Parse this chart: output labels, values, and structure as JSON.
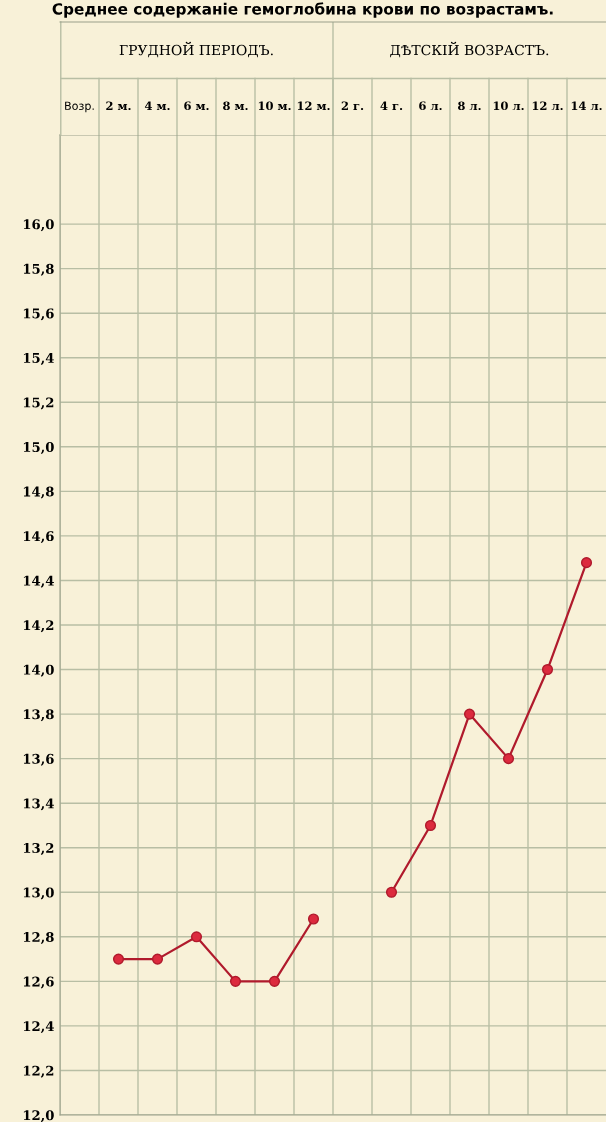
{
  "chart_data": {
    "type": "line",
    "title": "Среднее содержаніе гемоглобина крови по возрастамъ.",
    "xlabel": "Возр.",
    "annotations": [
      "ГРУДНОЙ ПЕРІОДЪ.",
      "ДѢТСКІЙ ВОЗРАСТЪ."
    ],
    "categories": [
      "2 м.",
      "4 м.",
      "6 м.",
      "8 м.",
      "10 м.",
      "12 м.",
      "2 г.",
      "4 г.",
      "6 л.",
      "8 л.",
      "10 л.",
      "12 л.",
      "14 л."
    ],
    "series": [
      {
        "color": "#b01a2c",
        "values": [
          12.7,
          12.7,
          12.8,
          12.6,
          12.6,
          12.88,
          null,
          13.0,
          13.3,
          13.8,
          13.6,
          14.0,
          14.48
        ]
      }
    ],
    "ylim": [
      12.0,
      16.4
    ],
    "yticks": [
      {
        "value": 12.0,
        "label": "12,0"
      },
      {
        "value": 12.2,
        "label": "12,2"
      },
      {
        "value": 12.4,
        "label": "12,4"
      },
      {
        "value": 12.6,
        "label": "12,6"
      },
      {
        "value": 12.8,
        "label": "12,8"
      },
      {
        "value": 13.0,
        "label": "13,0"
      },
      {
        "value": 13.2,
        "label": "13,2"
      },
      {
        "value": 13.4,
        "label": "13,4"
      },
      {
        "value": 13.6,
        "label": "13,6"
      },
      {
        "value": 13.8,
        "label": "13,8"
      },
      {
        "value": 14.0,
        "label": "14,0"
      },
      {
        "value": 14.2,
        "label": "14,2"
      },
      {
        "value": 14.4,
        "label": "14,4"
      },
      {
        "value": 14.6,
        "label": "14,6"
      },
      {
        "value": 14.8,
        "label": "14,8"
      },
      {
        "value": 15.0,
        "label": "15,0"
      },
      {
        "value": 15.2,
        "label": "15,2"
      },
      {
        "value": 15.4,
        "label": "15,4"
      },
      {
        "value": 15.6,
        "label": "15,6"
      },
      {
        "value": 15.8,
        "label": "15,8"
      },
      {
        "value": 16.0,
        "label": "16,0"
      }
    ],
    "grid": true,
    "marker": "circle",
    "line_style": "solid"
  }
}
